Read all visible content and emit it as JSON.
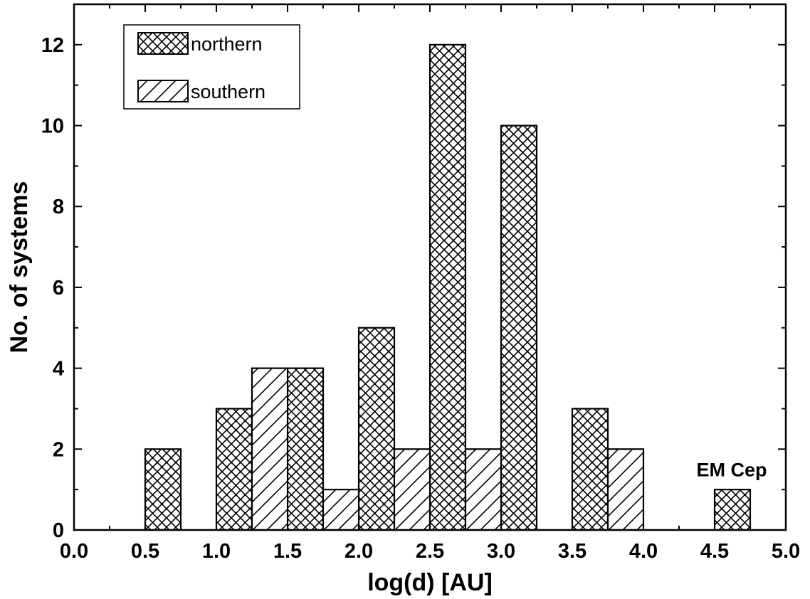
{
  "chart_data": {
    "type": "bar",
    "title": "",
    "xlabel": "log(d) [AU]",
    "ylabel": "No. of systems",
    "xlim": [
      0.0,
      5.0
    ],
    "ylim": [
      0,
      13
    ],
    "bin_width": 0.25,
    "x_ticks": [
      "0.0",
      "0.5",
      "1.0",
      "1.5",
      "2.0",
      "2.5",
      "3.0",
      "3.5",
      "4.0",
      "4.5",
      "5.0"
    ],
    "y_ticks": [
      "0",
      "2",
      "4",
      "6",
      "8",
      "10",
      "12"
    ],
    "grid": false,
    "legend_position": "top-left",
    "series": [
      {
        "name": "northern",
        "pattern": "crosshatch",
        "bins": [
          {
            "x_start": 0.5,
            "value": 2
          },
          {
            "x_start": 1.0,
            "value": 3
          },
          {
            "x_start": 1.5,
            "value": 4
          },
          {
            "x_start": 2.0,
            "value": 5
          },
          {
            "x_start": 2.5,
            "value": 12
          },
          {
            "x_start": 3.0,
            "value": 10
          },
          {
            "x_start": 3.5,
            "value": 3
          },
          {
            "x_start": 4.5,
            "value": 1
          }
        ]
      },
      {
        "name": "southern",
        "pattern": "diagonal",
        "bins": [
          {
            "x_start": 1.25,
            "value": 4
          },
          {
            "x_start": 1.75,
            "value": 1
          },
          {
            "x_start": 2.25,
            "value": 2
          },
          {
            "x_start": 2.75,
            "value": 2
          },
          {
            "x_start": 3.75,
            "value": 2
          }
        ]
      }
    ],
    "annotations": [
      {
        "text": "EM Cep",
        "x": 4.62,
        "y": 1.5
      }
    ]
  }
}
